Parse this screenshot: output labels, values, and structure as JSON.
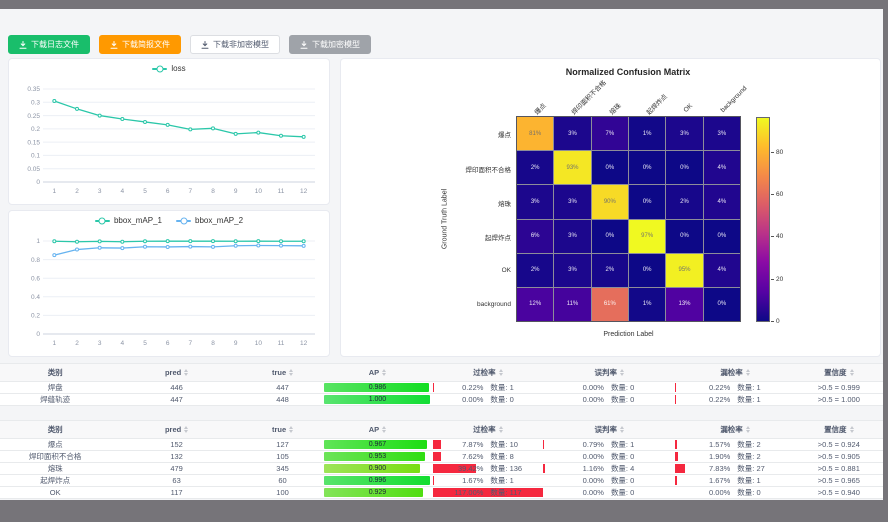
{
  "toolbar": {
    "buttons": [
      {
        "name": "download-log-button",
        "label": "下载日志文件",
        "bg": "#19be6b",
        "fg": "#ffffff",
        "border": "#19be6b"
      },
      {
        "name": "download-report-button",
        "label": "下载简报文件",
        "bg": "#ff9900",
        "fg": "#ffffff",
        "border": "#ff9900"
      },
      {
        "name": "download-plain-model-button",
        "label": "下载非加密模型",
        "bg": "#ffffff",
        "fg": "#515a6e",
        "border": "#dcdee2"
      },
      {
        "name": "download-encrypted-model-button",
        "label": "下载加密模型",
        "bg": "#9fa3a9",
        "fg": "#ffffff",
        "border": "#9fa3a9"
      }
    ]
  },
  "chart_data": [
    {
      "type": "line",
      "title": "loss",
      "legend_position": "top",
      "grid": true,
      "x": [
        1,
        2,
        3,
        4,
        5,
        6,
        7,
        8,
        9,
        10,
        11,
        12
      ],
      "series": [
        {
          "name": "loss",
          "color": "#2bc7a9",
          "values": [
            0.305,
            0.275,
            0.25,
            0.237,
            0.226,
            0.215,
            0.198,
            0.202,
            0.181,
            0.186,
            0.174,
            0.17
          ]
        }
      ],
      "ylim": [
        0,
        0.35
      ],
      "yticks": [
        0,
        0.05,
        0.1,
        0.15,
        0.2,
        0.25,
        0.3,
        0.35
      ],
      "ytick_labels": [
        "0",
        "0.05",
        "0.1",
        "0.15",
        "0.2",
        "0.25",
        "0.3",
        "0.35"
      ]
    },
    {
      "type": "line",
      "title": "bbox_mAP",
      "legend_position": "top",
      "grid": true,
      "x": [
        1,
        2,
        3,
        4,
        5,
        6,
        7,
        8,
        9,
        10,
        11,
        12
      ],
      "series": [
        {
          "name": "bbox_mAP_1",
          "color": "#2bc7a9",
          "values": [
            0.997,
            0.992,
            0.996,
            0.992,
            0.997,
            0.998,
            0.998,
            0.998,
            0.997,
            0.998,
            0.997,
            0.997
          ]
        },
        {
          "name": "bbox_mAP_2",
          "color": "#66b3f0",
          "values": [
            0.848,
            0.908,
            0.927,
            0.924,
            0.938,
            0.936,
            0.94,
            0.937,
            0.949,
            0.952,
            0.95,
            0.948
          ]
        }
      ],
      "ylim": [
        0,
        1
      ],
      "yticks": [
        0,
        0.2,
        0.4,
        0.6,
        0.8,
        1
      ],
      "ytick_labels": [
        "0",
        "0.2",
        "0.4",
        "0.6",
        "0.8",
        "1"
      ]
    },
    {
      "type": "heatmap",
      "title": "Normalized Confusion Matrix",
      "xlabel": "Prediction Label",
      "ylabel": "Ground Truth Label",
      "x_labels": [
        "爆点",
        "焊印面积不合格",
        "熔珠",
        "起焊炸点",
        "OK",
        "background"
      ],
      "y_labels": [
        "爆点",
        "焊印面积不合格",
        "熔珠",
        "起焊炸点",
        "OK",
        "background"
      ],
      "values_percent": [
        [
          81,
          3,
          7,
          1,
          3,
          3
        ],
        [
          2,
          93,
          0,
          0,
          0,
          4
        ],
        [
          3,
          3,
          90,
          0,
          2,
          4
        ],
        [
          6,
          3,
          0,
          97,
          0,
          0
        ],
        [
          2,
          3,
          2,
          0,
          95,
          4
        ],
        [
          12,
          11,
          61,
          1,
          13,
          0
        ]
      ],
      "vmax": 97,
      "colormap": "plasma",
      "colorbar_ticks": [
        0,
        20,
        40,
        60,
        80
      ]
    }
  ],
  "tables": [
    {
      "headers": [
        "类别",
        "pred",
        "true",
        "AP",
        "过检率",
        "误判率",
        "漏检率",
        "置信度"
      ],
      "rows": [
        {
          "category": "焊盘",
          "pred": "446",
          "true": "447",
          "ap": "0.986",
          "ap_value": 0.986,
          "rates": [
            {
              "pct": "0.22%",
              "count": "数量: 1",
              "value": 0.22
            },
            {
              "pct": "0.00%",
              "count": "数量: 0",
              "value": 0
            },
            {
              "pct": "0.22%",
              "count": "数量: 1",
              "value": 0.22
            }
          ],
          "confidence": ">0.5 = 0.999"
        },
        {
          "category": "焊缝轨迹",
          "pred": "447",
          "true": "448",
          "ap": "1.000",
          "ap_value": 1.0,
          "rates": [
            {
              "pct": "0.00%",
              "count": "数量: 0",
              "value": 0
            },
            {
              "pct": "0.00%",
              "count": "数量: 0",
              "value": 0
            },
            {
              "pct": "0.22%",
              "count": "数量: 1",
              "value": 0.22
            }
          ],
          "confidence": ">0.5 = 1.000"
        }
      ]
    },
    {
      "headers": [
        "类别",
        "pred",
        "true",
        "AP",
        "过检率",
        "误判率",
        "漏检率",
        "置信度"
      ],
      "rows": [
        {
          "category": "爆点",
          "pred": "152",
          "true": "127",
          "ap": "0.967",
          "ap_value": 0.967,
          "rates": [
            {
              "pct": "7.87%",
              "count": "数量: 10",
              "value": 7.87
            },
            {
              "pct": "0.79%",
              "count": "数量: 1",
              "value": 0.79
            },
            {
              "pct": "1.57%",
              "count": "数量: 2",
              "value": 1.57
            }
          ],
          "confidence": ">0.5 = 0.924"
        },
        {
          "category": "焊印面积不合格",
          "pred": "132",
          "true": "105",
          "ap": "0.953",
          "ap_value": 0.953,
          "rates": [
            {
              "pct": "7.62%",
              "count": "数量: 8",
              "value": 7.62
            },
            {
              "pct": "0.00%",
              "count": "数量: 0",
              "value": 0
            },
            {
              "pct": "1.90%",
              "count": "数量: 2",
              "value": 1.9
            }
          ],
          "confidence": ">0.5 = 0.905"
        },
        {
          "category": "熔珠",
          "pred": "479",
          "true": "345",
          "ap": "0.900",
          "ap_value": 0.9,
          "rates": [
            {
              "pct": "39.42%",
              "count": "数量: 136",
              "value": 39.42
            },
            {
              "pct": "1.16%",
              "count": "数量: 4",
              "value": 1.16
            },
            {
              "pct": "7.83%",
              "count": "数量: 27",
              "value": 7.83
            }
          ],
          "confidence": ">0.5 = 0.881"
        },
        {
          "category": "起焊炸点",
          "pred": "63",
          "true": "60",
          "ap": "0.996",
          "ap_value": 0.996,
          "rates": [
            {
              "pct": "1.67%",
              "count": "数量: 1",
              "value": 1.67
            },
            {
              "pct": "0.00%",
              "count": "数量: 0",
              "value": 0
            },
            {
              "pct": "1.67%",
              "count": "数量: 1",
              "value": 1.67
            }
          ],
          "confidence": ">0.5 = 0.965"
        },
        {
          "category": "OK",
          "pred": "117",
          "true": "100",
          "ap": "0.929",
          "ap_value": 0.929,
          "rates": [
            {
              "pct": "117.00%",
              "count": "数量: 117",
              "value": 117
            },
            {
              "pct": "0.00%",
              "count": "数量: 0",
              "value": 0
            },
            {
              "pct": "0.00%",
              "count": "数量: 0",
              "value": 0
            }
          ],
          "confidence": ">0.5 = 0.940"
        }
      ]
    }
  ],
  "colors": {
    "accent_green": "#19be6b",
    "accent_orange": "#ff9900",
    "line_teal": "#2bc7a9",
    "line_blue": "#66b3f0",
    "bar_red": "#f5283f",
    "surround_gray": "#767479",
    "panel_bg": "#f4f5f7"
  }
}
